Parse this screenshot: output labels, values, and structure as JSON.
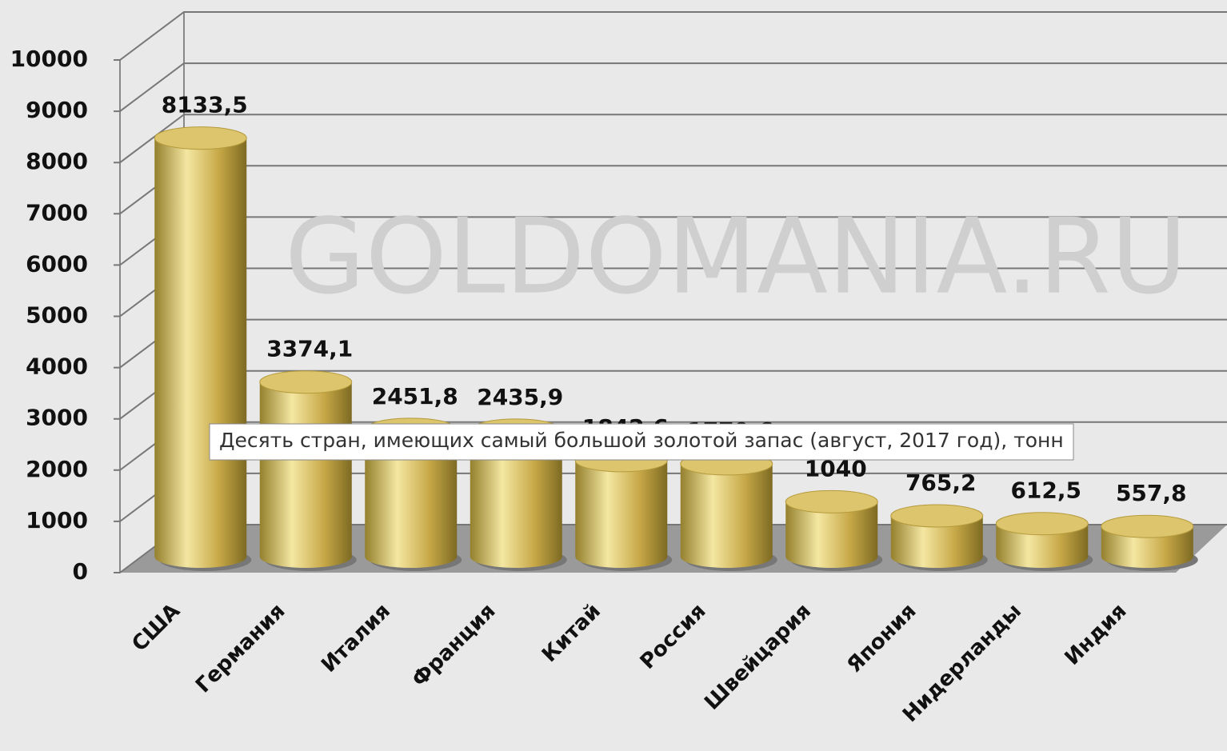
{
  "chart_data": {
    "type": "bar3d",
    "title": "Десять стран, имеющих самый большой золотой запас (август, 2017 год), тонн",
    "watermark": "GOLDOMANIA.RU",
    "categories": [
      "США",
      "Германия",
      "Италия",
      "Франция",
      "Китай",
      "Россия",
      "Швейцария",
      "Япония",
      "Нидерланды",
      "Индия"
    ],
    "values": [
      8133.5,
      3374.1,
      2451.8,
      2435.9,
      1842.6,
      1779.6,
      1040,
      765.2,
      612.5,
      557.8
    ],
    "value_labels": [
      "8133,5",
      "3374,1",
      "2451,8",
      "2435,9",
      "1842,6",
      "1779,6",
      "1040",
      "765,2",
      "612,5",
      "557,8"
    ],
    "color": "#c9a94a",
    "ylim": [
      0,
      10000
    ],
    "yticks": [
      0,
      1000,
      2000,
      3000,
      4000,
      5000,
      6000,
      7000,
      8000,
      9000,
      10000
    ],
    "grid": true
  }
}
